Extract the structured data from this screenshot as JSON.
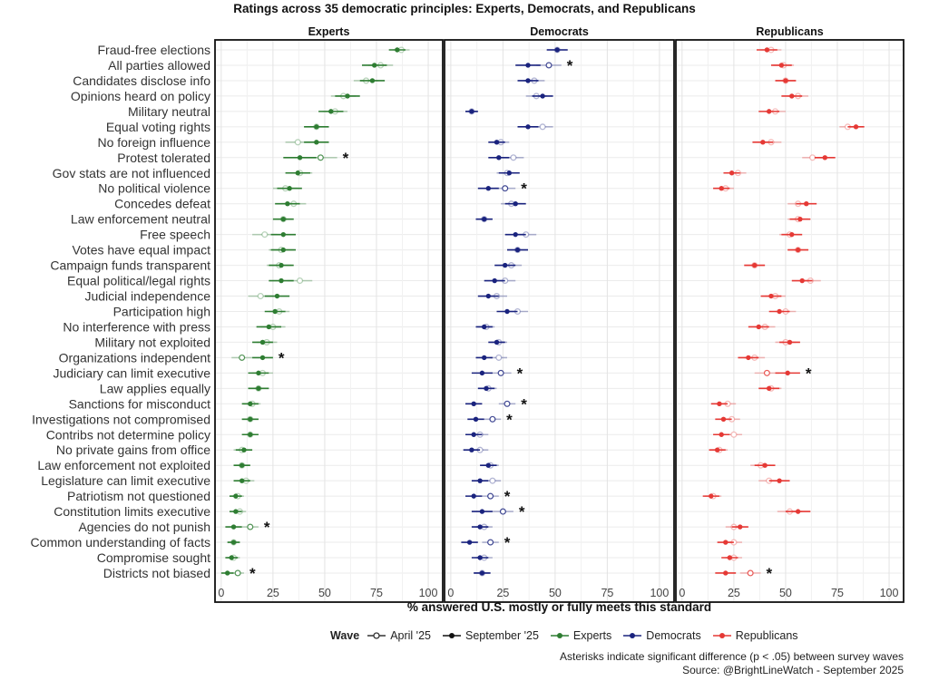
{
  "chart_data": {
    "type": "dot-range",
    "title": "Ratings across 35 democratic principles: Experts, Democrats, and Republicans",
    "xlabel": "% answered U.S. mostly or fully meets this standard",
    "xlim": [
      -3,
      107
    ],
    "xticks": [
      0,
      25,
      50,
      75,
      100
    ],
    "grid": true,
    "legend": {
      "title": "Wave",
      "placement": "bottom",
      "waves": [
        {
          "name": "April '25",
          "marker": "open"
        },
        {
          "name": "September '25",
          "marker": "filled"
        }
      ],
      "groups": [
        {
          "name": "Experts",
          "color": "#2e7d32"
        },
        {
          "name": "Democrats",
          "color": "#1a237e"
        },
        {
          "name": "Republicans",
          "color": "#e53935"
        }
      ]
    },
    "categories": [
      "Fraud-free elections",
      "All parties allowed",
      "Candidates disclose info",
      "Opinions heard on policy",
      "Military neutral",
      "Equal voting rights",
      "No foreign influence",
      "Protest tolerated",
      "Gov stats are not influenced",
      "No political violence",
      "Concedes defeat",
      "Law enforcement neutral",
      "Free speech",
      "Votes have equal impact",
      "Campaign funds transparent",
      "Equal political/legal rights",
      "Judicial independence",
      "Participation high",
      "No interference with press",
      "Military not exploited",
      "Organizations independent",
      "Judiciary can limit executive",
      "Law applies equally",
      "Sanctions for misconduct",
      "Investigations not compromised",
      "Contribs not determine policy",
      "No private gains from office",
      "Law enforcement not exploited",
      "Legislature can limit executive",
      "Patriotism not questioned",
      "Constitution limits executive",
      "Agencies do not punish",
      "Common understanding of facts",
      "Compromise sought",
      "Districts not biased"
    ],
    "panels": [
      {
        "name": "Experts",
        "color": "#2e7d32",
        "april": [
          87,
          77,
          70,
          59,
          55,
          46,
          37,
          48,
          38,
          31,
          35,
          30,
          21,
          29,
          28,
          38,
          19,
          28,
          25,
          22,
          10,
          20,
          18,
          15,
          14,
          14,
          10,
          10,
          12,
          8,
          9,
          14,
          6,
          6,
          8
        ],
        "september": [
          85,
          74,
          73,
          61,
          53,
          46,
          46,
          38,
          37,
          33,
          32,
          30,
          30,
          30,
          29,
          29,
          27,
          26,
          23,
          20,
          20,
          18,
          18,
          14,
          14,
          14,
          11,
          10,
          10,
          7,
          7,
          6,
          6,
          5,
          3
        ],
        "ci_half": [
          4,
          6,
          6,
          6,
          6,
          6,
          6,
          8,
          6,
          6,
          6,
          5,
          6,
          6,
          6,
          6,
          6,
          5,
          6,
          5,
          5,
          5,
          5,
          4,
          4,
          4,
          4,
          4,
          4,
          3,
          3,
          4,
          3,
          3,
          3
        ],
        "significant": [
          false,
          false,
          false,
          false,
          false,
          false,
          false,
          true,
          false,
          false,
          false,
          false,
          false,
          false,
          false,
          false,
          false,
          false,
          false,
          false,
          true,
          false,
          false,
          false,
          false,
          false,
          false,
          false,
          false,
          false,
          false,
          true,
          false,
          false,
          true
        ]
      },
      {
        "name": "Democrats",
        "color": "#1a237e",
        "april": [
          51,
          47,
          40,
          41,
          10,
          44,
          24,
          30,
          27,
          26,
          29,
          16,
          36,
          32,
          29,
          26,
          22,
          32,
          17,
          23,
          23,
          24,
          18,
          27,
          20,
          14,
          14,
          19,
          20,
          19,
          25,
          16,
          19,
          16,
          15
        ],
        "september": [
          51,
          37,
          37,
          44,
          10,
          37,
          22,
          23,
          28,
          18,
          31,
          16,
          31,
          32,
          26,
          21,
          18,
          27,
          16,
          22,
          16,
          15,
          17,
          11,
          12,
          11,
          10,
          18,
          14,
          11,
          15,
          14,
          9,
          14,
          15
        ],
        "ci_half": [
          5,
          6,
          5,
          5,
          3,
          5,
          4,
          5,
          5,
          5,
          5,
          4,
          5,
          5,
          5,
          5,
          5,
          5,
          4,
          4,
          4,
          5,
          4,
          4,
          4,
          4,
          4,
          4,
          4,
          4,
          5,
          4,
          4,
          4,
          4
        ],
        "significant": [
          false,
          true,
          false,
          false,
          false,
          false,
          false,
          false,
          false,
          true,
          false,
          false,
          false,
          false,
          false,
          false,
          false,
          false,
          false,
          false,
          false,
          true,
          false,
          true,
          true,
          false,
          false,
          false,
          false,
          true,
          true,
          false,
          true,
          false,
          false
        ]
      },
      {
        "name": "Republicans",
        "color": "#e53935",
        "april": [
          43,
          49,
          50,
          56,
          45,
          80,
          43,
          63,
          27,
          21,
          56,
          56,
          52,
          56,
          35,
          62,
          45,
          50,
          40,
          50,
          35,
          41,
          43,
          22,
          24,
          25,
          18,
          38,
          42,
          15,
          52,
          25,
          25,
          25,
          33
        ],
        "september": [
          41,
          48,
          50,
          53,
          42,
          84,
          39,
          69,
          24,
          19,
          60,
          57,
          53,
          56,
          35,
          58,
          43,
          47,
          37,
          52,
          32,
          51,
          42,
          18,
          20,
          19,
          17,
          40,
          47,
          14,
          56,
          28,
          21,
          23,
          21
        ],
        "ci_half": [
          5,
          5,
          5,
          5,
          5,
          4,
          5,
          5,
          4,
          4,
          5,
          5,
          5,
          5,
          5,
          5,
          5,
          5,
          5,
          5,
          5,
          6,
          5,
          4,
          4,
          4,
          4,
          5,
          5,
          4,
          6,
          4,
          4,
          4,
          5
        ],
        "significant": [
          false,
          false,
          false,
          false,
          false,
          false,
          false,
          false,
          false,
          false,
          false,
          false,
          false,
          false,
          false,
          false,
          false,
          false,
          false,
          false,
          false,
          true,
          false,
          false,
          false,
          false,
          false,
          false,
          false,
          false,
          false,
          false,
          false,
          false,
          true
        ]
      }
    ]
  },
  "notes": {
    "significance": "Asterisks indicate significant difference (p < .05) between survey waves",
    "source": "Source: @BrightLineWatch - September 2025"
  }
}
